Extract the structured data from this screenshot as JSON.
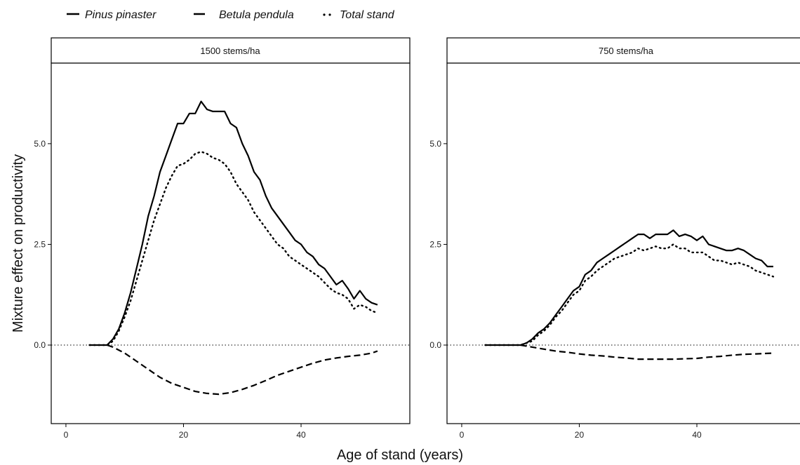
{
  "chart_data": {
    "type": "line",
    "xlabel": "Age of stand (years)",
    "ylabel": "Mixture effect on productivity",
    "xlim": [
      -2.5,
      58.5
    ],
    "ylim": [
      -1.95,
      7.0
    ],
    "x_ticks": [
      0,
      20,
      40
    ],
    "y_ticks": [
      0.0,
      2.5,
      5.0
    ],
    "y_tick_labels": [
      "0.0",
      "2.5",
      "5.0"
    ],
    "reference_line": {
      "y": 0,
      "style": "dotted"
    },
    "legend": {
      "placement": "top-left",
      "entries": [
        {
          "name": "Pinus pinaster",
          "style": "solid"
        },
        {
          "name": "Betula pendula",
          "style": "dashed"
        },
        {
          "name": "Total stand",
          "style": "dotted"
        }
      ]
    },
    "panels": [
      {
        "strip": "1500 stems/ha",
        "show_y_tick_labels": true,
        "series": [
          {
            "name": "Pinus pinaster",
            "style": "solid",
            "points": [
              [
                4,
                0
              ],
              [
                5,
                0
              ],
              [
                6,
                0
              ],
              [
                7,
                0
              ],
              [
                8,
                0.15
              ],
              [
                9,
                0.4
              ],
              [
                10,
                0.8
              ],
              [
                11,
                1.3
              ],
              [
                12,
                1.9
              ],
              [
                13,
                2.5
              ],
              [
                14,
                3.2
              ],
              [
                15,
                3.7
              ],
              [
                16,
                4.3
              ],
              [
                17,
                4.7
              ],
              [
                18,
                5.1
              ],
              [
                19,
                5.5
              ],
              [
                20,
                5.5
              ],
              [
                21,
                5.75
              ],
              [
                22,
                5.75
              ],
              [
                23,
                6.05
              ],
              [
                24,
                5.85
              ],
              [
                25,
                5.8
              ],
              [
                26,
                5.8
              ],
              [
                27,
                5.8
              ],
              [
                28,
                5.5
              ],
              [
                29,
                5.4
              ],
              [
                30,
                5.0
              ],
              [
                31,
                4.7
              ],
              [
                32,
                4.3
              ],
              [
                33,
                4.1
              ],
              [
                34,
                3.7
              ],
              [
                35,
                3.4
              ],
              [
                36,
                3.2
              ],
              [
                37,
                3.0
              ],
              [
                38,
                2.8
              ],
              [
                39,
                2.6
              ],
              [
                40,
                2.5
              ],
              [
                41,
                2.3
              ],
              [
                42,
                2.2
              ],
              [
                43,
                2.0
              ],
              [
                44,
                1.9
              ],
              [
                45,
                1.7
              ],
              [
                46,
                1.5
              ],
              [
                47,
                1.6
              ],
              [
                48,
                1.4
              ],
              [
                49,
                1.15
              ],
              [
                50,
                1.35
              ],
              [
                51,
                1.15
              ],
              [
                52,
                1.05
              ],
              [
                53,
                1.0
              ]
            ]
          },
          {
            "name": "Betula pendula",
            "style": "dashed",
            "points": [
              [
                7,
                0
              ],
              [
                8,
                -0.05
              ],
              [
                10,
                -0.2
              ],
              [
                12,
                -0.4
              ],
              [
                14,
                -0.6
              ],
              [
                16,
                -0.8
              ],
              [
                18,
                -0.95
              ],
              [
                20,
                -1.05
              ],
              [
                22,
                -1.15
              ],
              [
                24,
                -1.2
              ],
              [
                26,
                -1.22
              ],
              [
                28,
                -1.18
              ],
              [
                30,
                -1.1
              ],
              [
                32,
                -1.0
              ],
              [
                34,
                -0.88
              ],
              [
                36,
                -0.75
              ],
              [
                38,
                -0.65
              ],
              [
                40,
                -0.55
              ],
              [
                42,
                -0.45
              ],
              [
                44,
                -0.37
              ],
              [
                46,
                -0.32
              ],
              [
                48,
                -0.28
              ],
              [
                50,
                -0.25
              ],
              [
                52,
                -0.2
              ],
              [
                53,
                -0.15
              ]
            ]
          },
          {
            "name": "Total stand",
            "style": "dotted",
            "points": [
              [
                4,
                0
              ],
              [
                6,
                0
              ],
              [
                7,
                0
              ],
              [
                8,
                0.1
              ],
              [
                9,
                0.35
              ],
              [
                10,
                0.7
              ],
              [
                11,
                1.1
              ],
              [
                12,
                1.6
              ],
              [
                13,
                2.1
              ],
              [
                14,
                2.6
              ],
              [
                15,
                3.1
              ],
              [
                16,
                3.5
              ],
              [
                17,
                3.9
              ],
              [
                18,
                4.2
              ],
              [
                19,
                4.45
              ],
              [
                20,
                4.5
              ],
              [
                21,
                4.6
              ],
              [
                22,
                4.75
              ],
              [
                23,
                4.8
              ],
              [
                24,
                4.75
              ],
              [
                25,
                4.65
              ],
              [
                26,
                4.6
              ],
              [
                27,
                4.5
              ],
              [
                28,
                4.3
              ],
              [
                29,
                4.0
              ],
              [
                30,
                3.8
              ],
              [
                31,
                3.6
              ],
              [
                32,
                3.3
              ],
              [
                33,
                3.1
              ],
              [
                34,
                2.9
              ],
              [
                35,
                2.7
              ],
              [
                36,
                2.5
              ],
              [
                37,
                2.4
              ],
              [
                38,
                2.2
              ],
              [
                39,
                2.1
              ],
              [
                40,
                2.0
              ],
              [
                41,
                1.9
              ],
              [
                42,
                1.8
              ],
              [
                43,
                1.7
              ],
              [
                44,
                1.55
              ],
              [
                45,
                1.4
              ],
              [
                46,
                1.3
              ],
              [
                47,
                1.25
              ],
              [
                48,
                1.15
              ],
              [
                49,
                0.9
              ],
              [
                50,
                1.0
              ],
              [
                51,
                0.95
              ],
              [
                52,
                0.85
              ],
              [
                53,
                0.8
              ]
            ]
          }
        ]
      },
      {
        "strip": "750 stems/ha",
        "show_y_tick_labels": true,
        "series": [
          {
            "name": "Pinus pinaster",
            "style": "solid",
            "points": [
              [
                4,
                0
              ],
              [
                6,
                0
              ],
              [
                8,
                0
              ],
              [
                10,
                0
              ],
              [
                11,
                0.05
              ],
              [
                12,
                0.15
              ],
              [
                13,
                0.3
              ],
              [
                14,
                0.4
              ],
              [
                15,
                0.55
              ],
              [
                16,
                0.75
              ],
              [
                17,
                0.95
              ],
              [
                18,
                1.15
              ],
              [
                19,
                1.35
              ],
              [
                20,
                1.45
              ],
              [
                21,
                1.75
              ],
              [
                22,
                1.85
              ],
              [
                23,
                2.05
              ],
              [
                24,
                2.15
              ],
              [
                25,
                2.25
              ],
              [
                26,
                2.35
              ],
              [
                27,
                2.45
              ],
              [
                28,
                2.55
              ],
              [
                29,
                2.65
              ],
              [
                30,
                2.75
              ],
              [
                31,
                2.75
              ],
              [
                32,
                2.65
              ],
              [
                33,
                2.75
              ],
              [
                34,
                2.75
              ],
              [
                35,
                2.75
              ],
              [
                36,
                2.85
              ],
              [
                37,
                2.7
              ],
              [
                38,
                2.75
              ],
              [
                39,
                2.7
              ],
              [
                40,
                2.6
              ],
              [
                41,
                2.7
              ],
              [
                42,
                2.5
              ],
              [
                43,
                2.45
              ],
              [
                44,
                2.4
              ],
              [
                45,
                2.35
              ],
              [
                46,
                2.35
              ],
              [
                47,
                2.4
              ],
              [
                48,
                2.35
              ],
              [
                49,
                2.25
              ],
              [
                50,
                2.15
              ],
              [
                51,
                2.1
              ],
              [
                52,
                1.95
              ],
              [
                53,
                1.95
              ]
            ]
          },
          {
            "name": "Betula pendula",
            "style": "dashed",
            "points": [
              [
                10,
                0
              ],
              [
                12,
                -0.05
              ],
              [
                14,
                -0.1
              ],
              [
                16,
                -0.15
              ],
              [
                18,
                -0.18
              ],
              [
                20,
                -0.22
              ],
              [
                22,
                -0.25
              ],
              [
                24,
                -0.27
              ],
              [
                26,
                -0.3
              ],
              [
                28,
                -0.32
              ],
              [
                30,
                -0.35
              ],
              [
                32,
                -0.35
              ],
              [
                34,
                -0.35
              ],
              [
                36,
                -0.35
              ],
              [
                38,
                -0.34
              ],
              [
                40,
                -0.33
              ],
              [
                42,
                -0.3
              ],
              [
                44,
                -0.28
              ],
              [
                46,
                -0.25
              ],
              [
                48,
                -0.23
              ],
              [
                50,
                -0.22
              ],
              [
                53,
                -0.2
              ]
            ]
          },
          {
            "name": "Total stand",
            "style": "dotted",
            "points": [
              [
                4,
                0
              ],
              [
                8,
                0
              ],
              [
                10,
                0
              ],
              [
                11,
                0.05
              ],
              [
                12,
                0.1
              ],
              [
                13,
                0.25
              ],
              [
                14,
                0.35
              ],
              [
                15,
                0.5
              ],
              [
                16,
                0.7
              ],
              [
                17,
                0.85
              ],
              [
                18,
                1.05
              ],
              [
                19,
                1.25
              ],
              [
                20,
                1.35
              ],
              [
                21,
                1.6
              ],
              [
                22,
                1.7
              ],
              [
                23,
                1.85
              ],
              [
                24,
                1.95
              ],
              [
                25,
                2.05
              ],
              [
                26,
                2.15
              ],
              [
                27,
                2.2
              ],
              [
                28,
                2.25
              ],
              [
                29,
                2.3
              ],
              [
                30,
                2.4
              ],
              [
                31,
                2.35
              ],
              [
                32,
                2.4
              ],
              [
                33,
                2.45
              ],
              [
                34,
                2.4
              ],
              [
                35,
                2.4
              ],
              [
                36,
                2.5
              ],
              [
                37,
                2.4
              ],
              [
                38,
                2.4
              ],
              [
                39,
                2.3
              ],
              [
                40,
                2.3
              ],
              [
                41,
                2.3
              ],
              [
                42,
                2.2
              ],
              [
                43,
                2.1
              ],
              [
                44,
                2.1
              ],
              [
                45,
                2.05
              ],
              [
                46,
                2.0
              ],
              [
                47,
                2.05
              ],
              [
                48,
                2.0
              ],
              [
                49,
                1.95
              ],
              [
                50,
                1.85
              ],
              [
                51,
                1.8
              ],
              [
                52,
                1.75
              ],
              [
                53,
                1.7
              ]
            ]
          }
        ]
      }
    ]
  }
}
